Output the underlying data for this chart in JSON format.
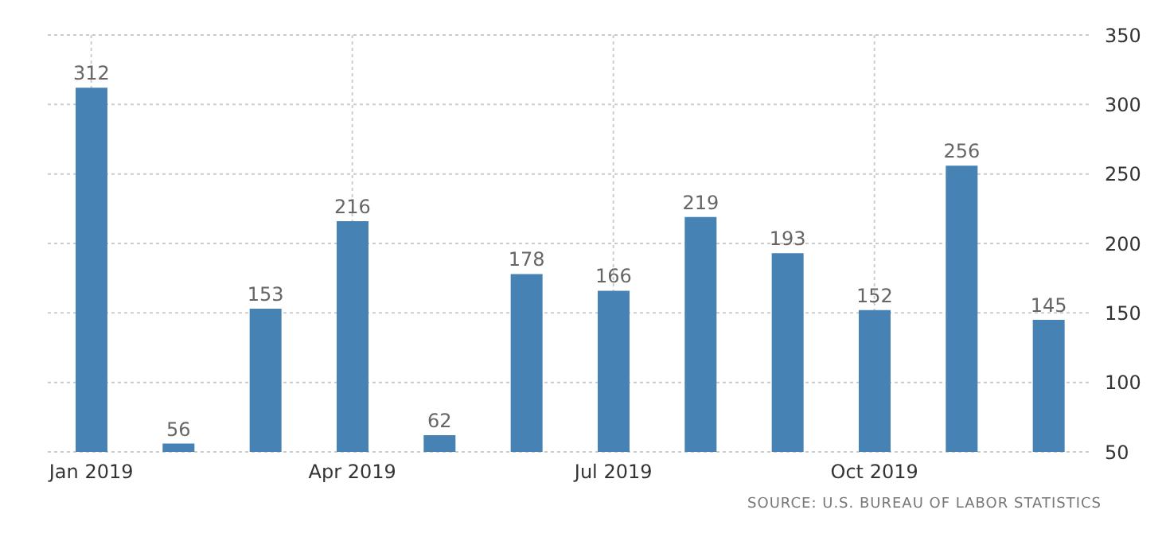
{
  "chart_data": {
    "type": "bar",
    "categories": [
      "Jan 2019",
      null,
      null,
      "Apr 2019",
      null,
      null,
      "Jul 2019",
      null,
      null,
      "Oct 2019",
      null,
      null
    ],
    "values": [
      312,
      56,
      153,
      216,
      62,
      178,
      166,
      219,
      193,
      152,
      256,
      145
    ],
    "color": "#4682b4",
    "ylim": [
      50,
      350
    ],
    "yticks": [
      50,
      100,
      150,
      200,
      250,
      300,
      350
    ],
    "grid": true,
    "data_labels": true,
    "annotations": [
      "SOURCE: U.S. BUREAU OF LABOR STATISTICS"
    ]
  }
}
